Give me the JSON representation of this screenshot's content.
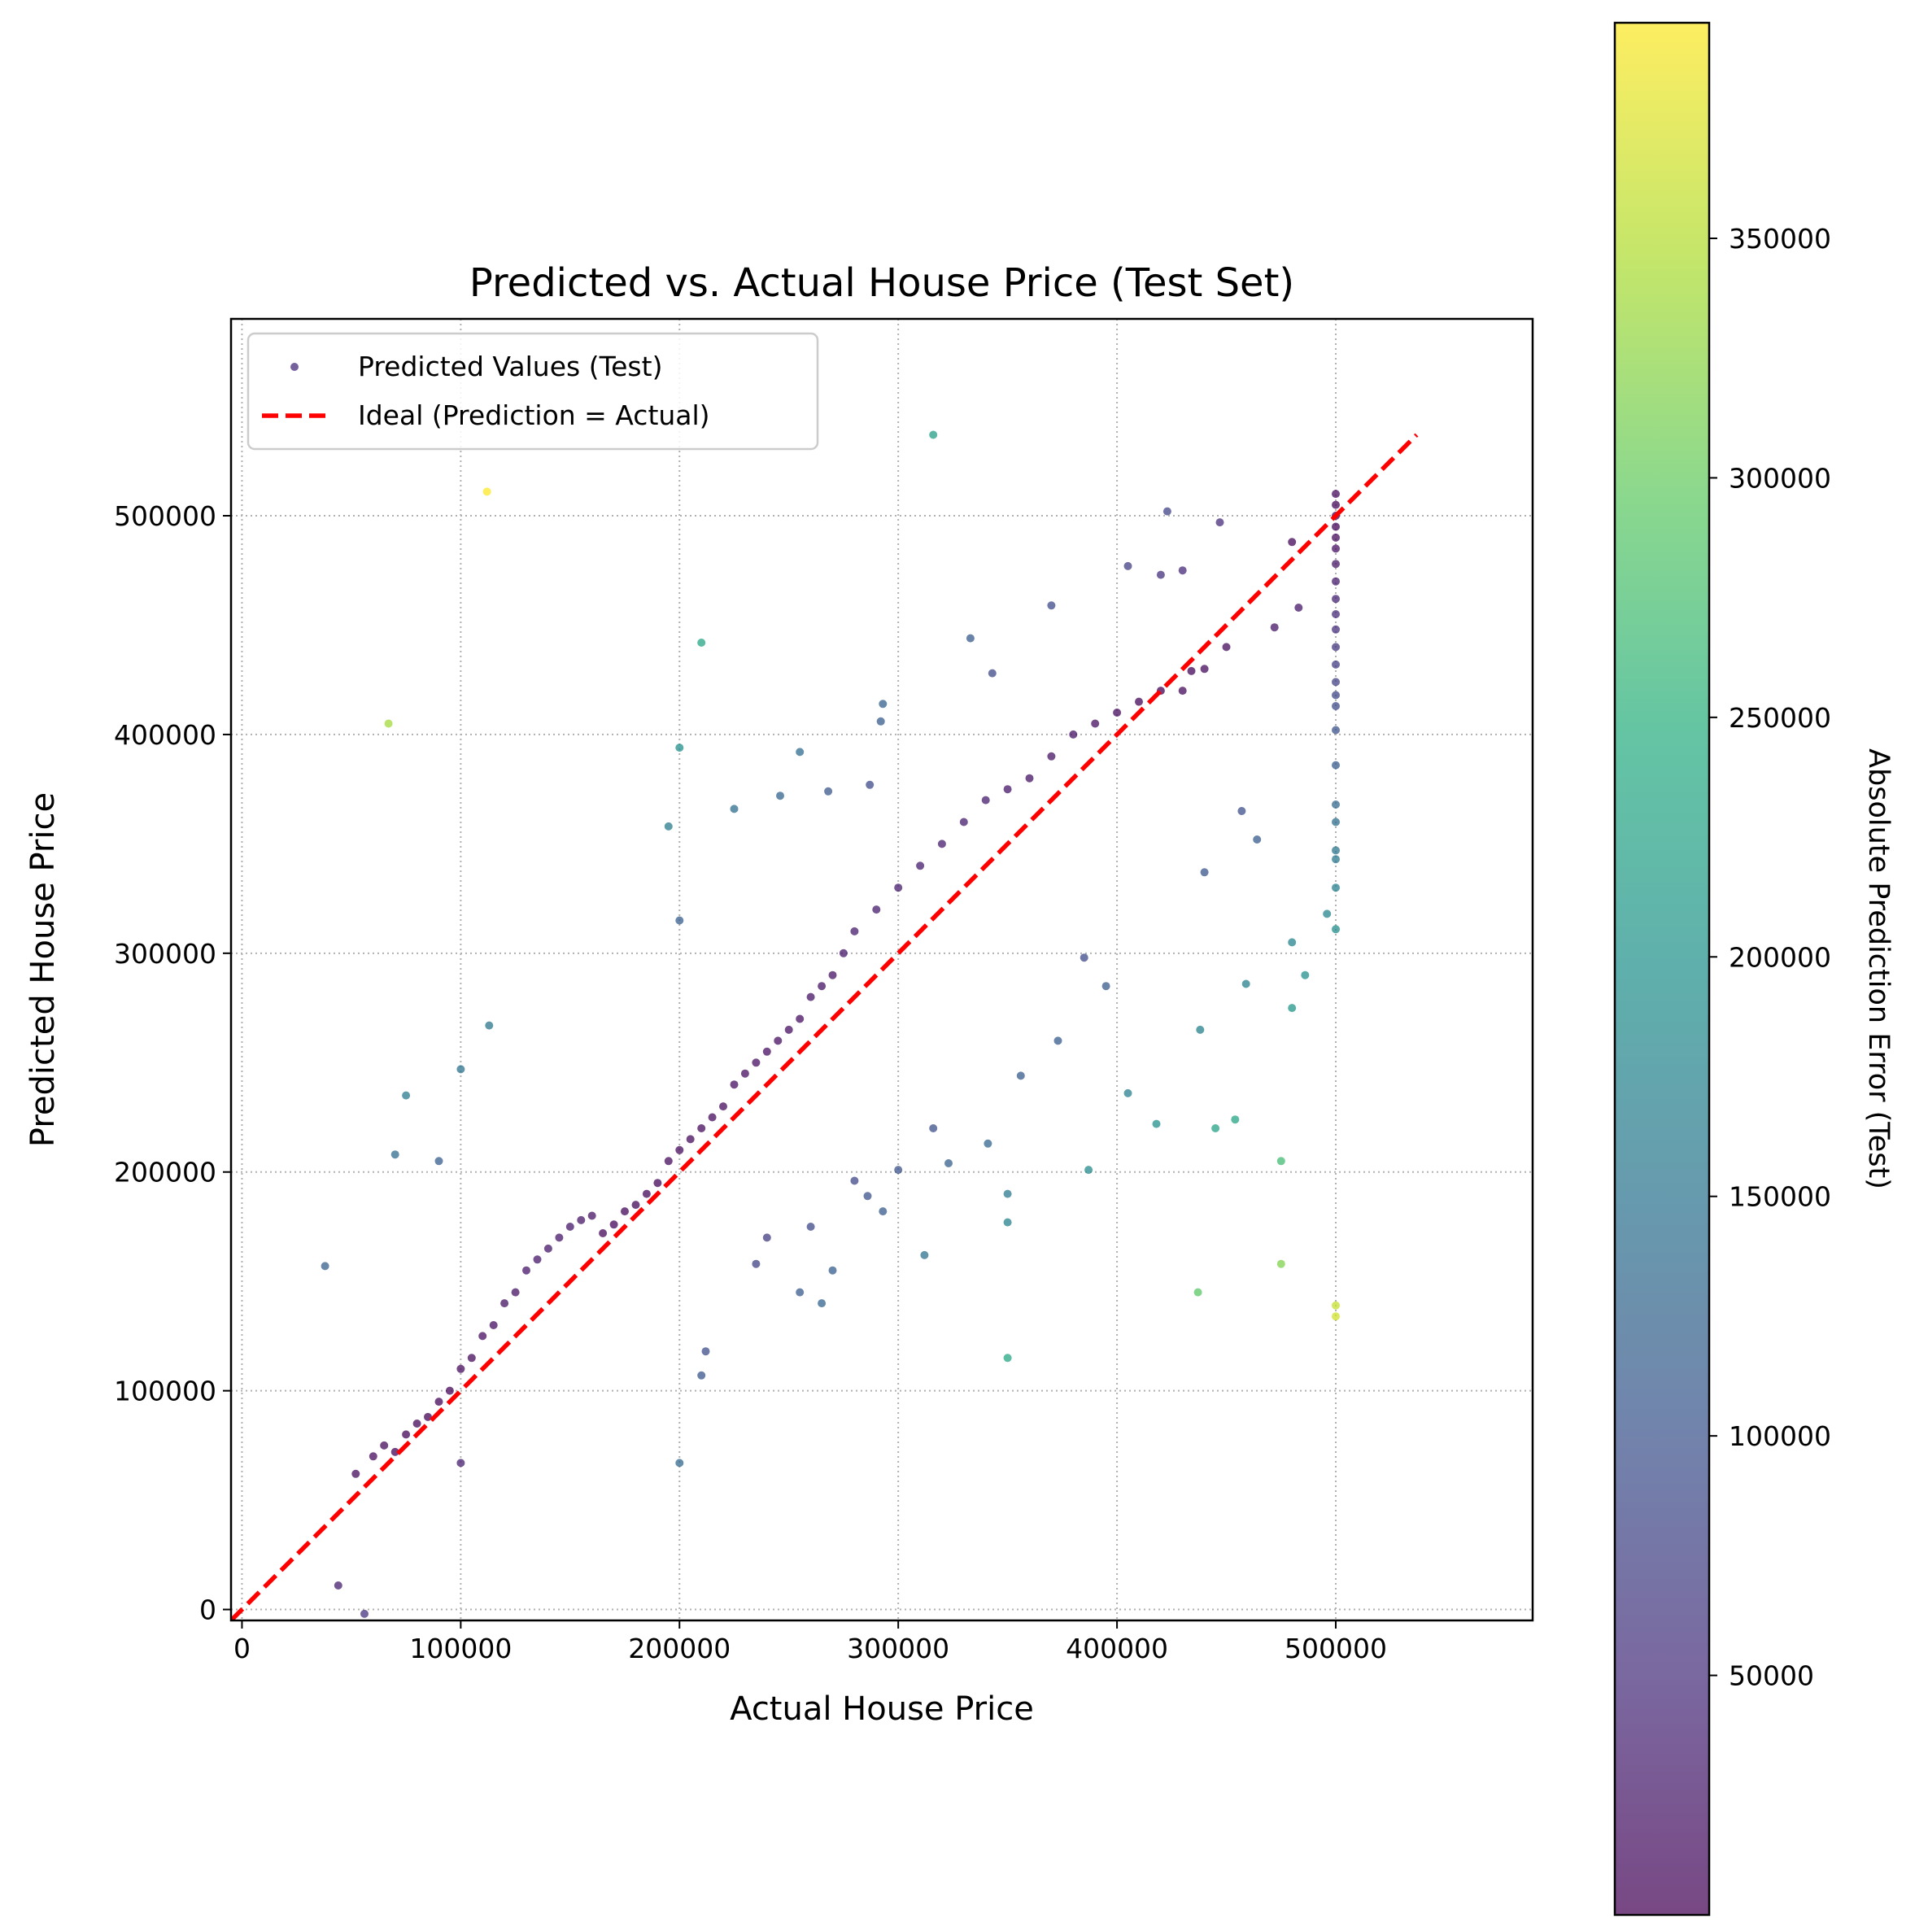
{
  "chart_data": {
    "type": "scatter",
    "title": "Predicted vs. Actual House Price (Test Set)",
    "xlabel": "Actual House Price",
    "ylabel": "Predicted House Price",
    "xlim": [
      -5000,
      590000
    ],
    "ylim": [
      -5000,
      590000
    ],
    "x_ticks": [
      0,
      100000,
      200000,
      300000,
      400000,
      500000
    ],
    "y_ticks": [
      0,
      100000,
      200000,
      300000,
      400000,
      500000
    ],
    "x_tick_labels": [
      "0",
      "100000",
      "200000",
      "300000",
      "400000",
      "500000"
    ],
    "y_tick_labels": [
      "0",
      "100000",
      "200000",
      "300000",
      "400000",
      "500000"
    ],
    "grid": true,
    "legend_position": "top-left",
    "legend": [
      "Predicted Values (Test)",
      "Ideal (Prediction = Actual)"
    ],
    "colorbar": {
      "label": "Absolute Prediction Error (Test)",
      "colormap": "viridis",
      "range": [
        0,
        395000
      ],
      "ticks": [
        50000,
        100000,
        150000,
        200000,
        250000,
        300000,
        350000
      ],
      "tick_labels": [
        "50000",
        "100000",
        "150000",
        "200000",
        "250000",
        "300000",
        "350000"
      ]
    },
    "ideal_line": {
      "name": "Ideal (Prediction = Actual)",
      "x": [
        -5000,
        537000
      ],
      "y": [
        -5000,
        537000
      ],
      "color": "#ff0000",
      "style": "dashed"
    },
    "series": [
      {
        "name": "Predicted Values (Test)",
        "color_by": "absolute error",
        "points": [
          [
            112000,
            511000
          ],
          [
            316000,
            537000
          ],
          [
            67000,
            405000
          ],
          [
            210000,
            442000
          ],
          [
            200000,
            394000
          ],
          [
            255000,
            392000
          ],
          [
            38000,
            157000
          ],
          [
            100000,
            247000
          ],
          [
            75000,
            235000
          ],
          [
            113000,
            267000
          ],
          [
            70000,
            208000
          ],
          [
            90000,
            205000
          ],
          [
            100000,
            67000
          ],
          [
            44000,
            11000
          ],
          [
            56000,
            -2000
          ],
          [
            200000,
            67000
          ],
          [
            350000,
            115000
          ],
          [
            437000,
            145000
          ],
          [
            475000,
            158000
          ],
          [
            500000,
            134000
          ],
          [
            500000,
            139000
          ],
          [
            475000,
            205000
          ],
          [
            387000,
            201000
          ],
          [
            418000,
            222000
          ],
          [
            445000,
            220000
          ],
          [
            454000,
            224000
          ],
          [
            405000,
            236000
          ],
          [
            438000,
            265000
          ],
          [
            480000,
            275000
          ],
          [
            486000,
            290000
          ],
          [
            480000,
            305000
          ],
          [
            496000,
            318000
          ],
          [
            500000,
            311000
          ],
          [
            500000,
            330000
          ],
          [
            500000,
            343000
          ],
          [
            500000,
            347000
          ],
          [
            500000,
            360000
          ],
          [
            500000,
            368000
          ],
          [
            500000,
            386000
          ],
          [
            500000,
            402000
          ],
          [
            350000,
            190000
          ],
          [
            350000,
            177000
          ],
          [
            312000,
            162000
          ],
          [
            293000,
            182000
          ],
          [
            265000,
            140000
          ],
          [
            255000,
            145000
          ],
          [
            210000,
            107000
          ],
          [
            212000,
            118000
          ],
          [
            200000,
            315000
          ],
          [
            195000,
            358000
          ],
          [
            225000,
            366000
          ],
          [
            246000,
            372000
          ],
          [
            268000,
            374000
          ],
          [
            287000,
            377000
          ],
          [
            292000,
            406000
          ],
          [
            293000,
            414000
          ],
          [
            434000,
            429000
          ],
          [
            423000,
            502000
          ],
          [
            447000,
            497000
          ],
          [
            500000,
            510000
          ],
          [
            500000,
            505000
          ],
          [
            500000,
            500000
          ],
          [
            500000,
            495000
          ],
          [
            500000,
            490000
          ],
          [
            500000,
            485000
          ],
          [
            500000,
            478000
          ],
          [
            500000,
            470000
          ],
          [
            500000,
            462000
          ],
          [
            500000,
            455000
          ],
          [
            500000,
            448000
          ],
          [
            500000,
            440000
          ],
          [
            500000,
            432000
          ],
          [
            500000,
            424000
          ],
          [
            500000,
            418000
          ],
          [
            500000,
            413000
          ],
          [
            370000,
            459000
          ],
          [
            333000,
            444000
          ],
          [
            343000,
            428000
          ],
          [
            405000,
            477000
          ],
          [
            420000,
            473000
          ],
          [
            430000,
            475000
          ],
          [
            480000,
            488000
          ],
          [
            483000,
            458000
          ],
          [
            472000,
            449000
          ],
          [
            440000,
            337000
          ],
          [
            457000,
            365000
          ],
          [
            464000,
            352000
          ],
          [
            459000,
            286000
          ],
          [
            395000,
            285000
          ],
          [
            385000,
            298000
          ],
          [
            373000,
            260000
          ],
          [
            356000,
            244000
          ],
          [
            341000,
            213000
          ],
          [
            323000,
            204000
          ],
          [
            316000,
            220000
          ],
          [
            300000,
            201000
          ],
          [
            280000,
            196000
          ],
          [
            286000,
            189000
          ],
          [
            270000,
            155000
          ],
          [
            260000,
            175000
          ],
          [
            240000,
            170000
          ],
          [
            235000,
            158000
          ],
          [
            52000,
            62000
          ],
          [
            60000,
            70000
          ],
          [
            65000,
            75000
          ],
          [
            70000,
            72000
          ],
          [
            75000,
            80000
          ],
          [
            80000,
            85000
          ],
          [
            85000,
            88000
          ],
          [
            90000,
            95000
          ],
          [
            95000,
            100000
          ],
          [
            100000,
            110000
          ],
          [
            105000,
            115000
          ],
          [
            110000,
            125000
          ],
          [
            115000,
            130000
          ],
          [
            120000,
            140000
          ],
          [
            125000,
            145000
          ],
          [
            130000,
            155000
          ],
          [
            135000,
            160000
          ],
          [
            140000,
            165000
          ],
          [
            145000,
            170000
          ],
          [
            150000,
            175000
          ],
          [
            155000,
            178000
          ],
          [
            160000,
            180000
          ],
          [
            165000,
            172000
          ],
          [
            170000,
            176000
          ],
          [
            175000,
            182000
          ],
          [
            180000,
            185000
          ],
          [
            185000,
            190000
          ],
          [
            190000,
            195000
          ],
          [
            195000,
            205000
          ],
          [
            200000,
            210000
          ],
          [
            205000,
            215000
          ],
          [
            210000,
            220000
          ],
          [
            215000,
            225000
          ],
          [
            220000,
            230000
          ],
          [
            225000,
            240000
          ],
          [
            230000,
            245000
          ],
          [
            235000,
            250000
          ],
          [
            240000,
            255000
          ],
          [
            245000,
            260000
          ],
          [
            250000,
            265000
          ],
          [
            255000,
            270000
          ],
          [
            260000,
            280000
          ],
          [
            265000,
            285000
          ],
          [
            270000,
            290000
          ],
          [
            275000,
            300000
          ],
          [
            280000,
            310000
          ],
          [
            290000,
            320000
          ],
          [
            300000,
            330000
          ],
          [
            310000,
            340000
          ],
          [
            320000,
            350000
          ],
          [
            330000,
            360000
          ],
          [
            340000,
            370000
          ],
          [
            350000,
            375000
          ],
          [
            360000,
            380000
          ],
          [
            370000,
            390000
          ],
          [
            380000,
            400000
          ],
          [
            390000,
            405000
          ],
          [
            400000,
            410000
          ],
          [
            410000,
            415000
          ],
          [
            420000,
            420000
          ],
          [
            430000,
            420000
          ],
          [
            440000,
            430000
          ],
          [
            450000,
            440000
          ]
        ]
      }
    ]
  }
}
